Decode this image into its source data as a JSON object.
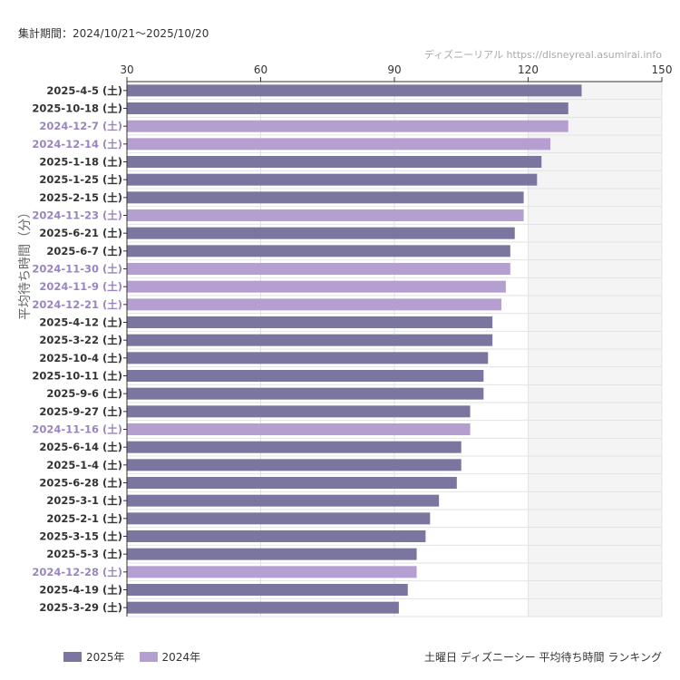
{
  "period_text": "集計期間：2024/10/21〜2025/10/20",
  "credit_text": "ディズニーリアル https://disneyreal.asumirai.info",
  "colors": {
    "y2025": "#7b76a0",
    "y2024": "#b59fd0",
    "shade": "#f4f4f4",
    "grid": "#e2e2e2",
    "axis": "#333333"
  },
  "chart_data": {
    "type": "bar",
    "orientation": "horizontal",
    "title": "土曜日 ディズニーシー 平均待ち時間 ランキング",
    "ylabel": "平均待ち時間（分）",
    "xlim": [
      30,
      150
    ],
    "xticks": [
      30,
      60,
      90,
      120,
      150
    ],
    "shaded_range": [
      120,
      150
    ],
    "legend": [
      {
        "key": "2025",
        "label": "2025年"
      },
      {
        "key": "2024",
        "label": "2024年"
      }
    ],
    "categories": [
      "2025-4-5 (土)",
      "2025-10-18 (土)",
      "2024-12-7 (土)",
      "2024-12-14 (土)",
      "2025-1-18 (土)",
      "2025-1-25 (土)",
      "2025-2-15 (土)",
      "2024-11-23 (土)",
      "2025-6-21 (土)",
      "2025-6-7 (土)",
      "2024-11-30 (土)",
      "2024-11-9 (土)",
      "2024-12-21 (土)",
      "2025-4-12 (土)",
      "2025-3-22 (土)",
      "2025-10-4 (土)",
      "2025-10-11 (土)",
      "2025-9-6 (土)",
      "2025-9-27 (土)",
      "2024-11-16 (土)",
      "2025-6-14 (土)",
      "2025-1-4 (土)",
      "2025-6-28 (土)",
      "2025-3-1 (土)",
      "2025-2-1 (土)",
      "2025-3-15 (土)",
      "2025-5-3 (土)",
      "2024-12-28 (土)",
      "2025-4-19 (土)",
      "2025-3-29 (土)"
    ],
    "values": [
      132,
      129,
      129,
      125,
      123,
      122,
      119,
      119,
      117,
      116,
      116,
      115,
      114,
      112,
      112,
      111,
      110,
      110,
      107,
      107,
      105,
      105,
      104,
      100,
      98,
      97,
      95,
      95,
      93,
      91
    ],
    "years": [
      "2025",
      "2025",
      "2024",
      "2024",
      "2025",
      "2025",
      "2025",
      "2024",
      "2025",
      "2025",
      "2024",
      "2024",
      "2024",
      "2025",
      "2025",
      "2025",
      "2025",
      "2025",
      "2025",
      "2024",
      "2025",
      "2025",
      "2025",
      "2025",
      "2025",
      "2025",
      "2025",
      "2024",
      "2025",
      "2025"
    ]
  }
}
